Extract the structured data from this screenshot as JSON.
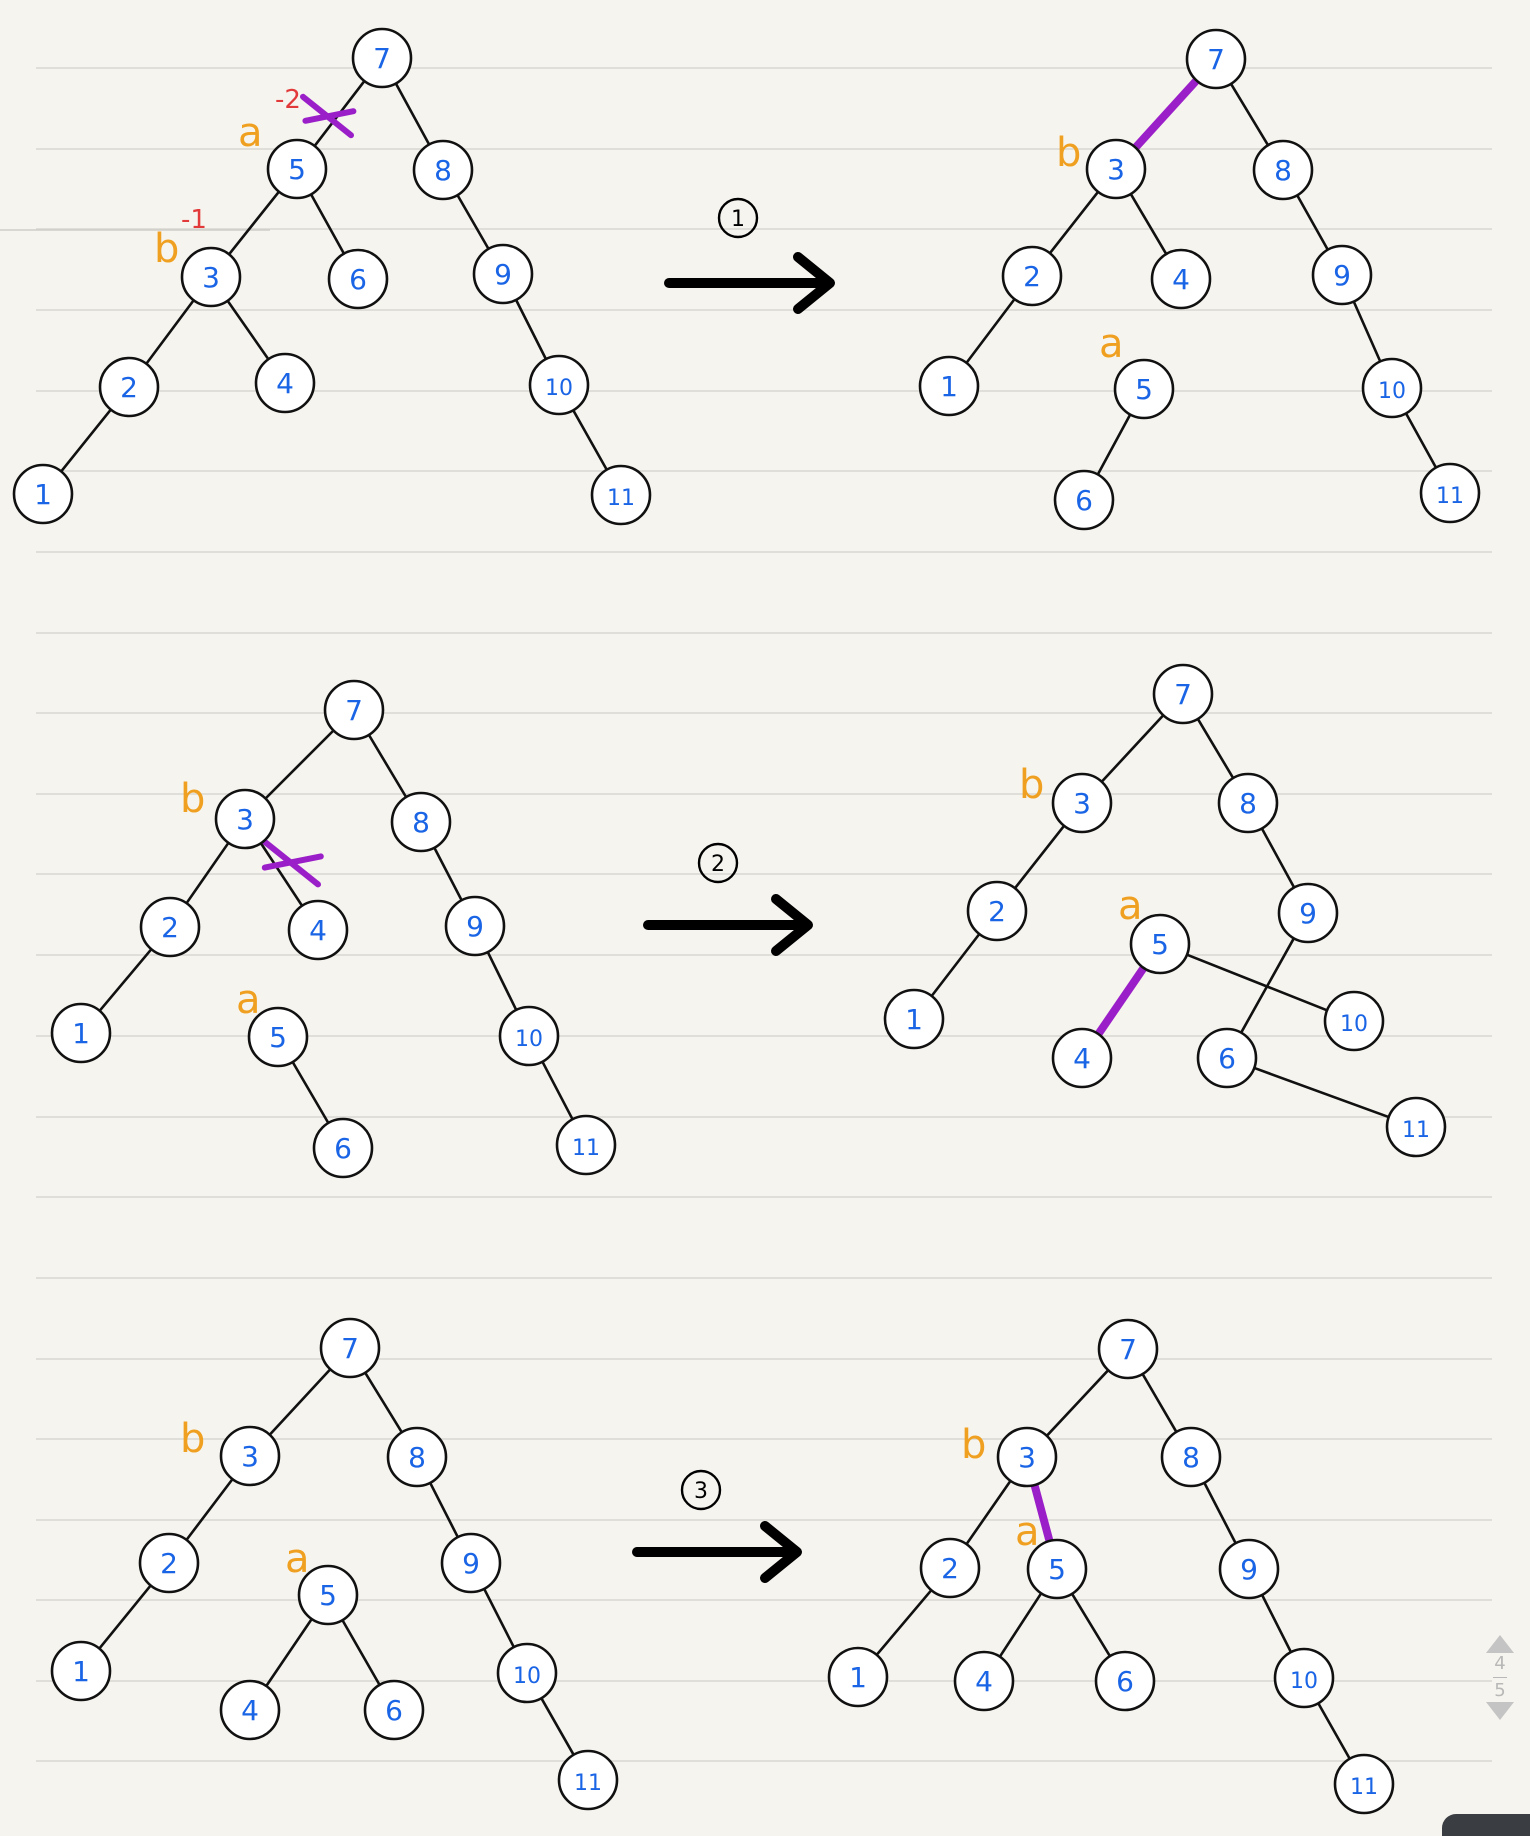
{
  "steps": [
    "1",
    "2",
    "3"
  ],
  "pager": {
    "current": "4",
    "total": "5"
  },
  "trees": [
    {
      "nodes": [
        "7",
        "5",
        "8",
        "3",
        "6",
        "9",
        "2",
        "4",
        "10",
        "1",
        "11"
      ],
      "labels": [
        "a",
        "b"
      ],
      "marks": [
        "-2",
        "-1"
      ]
    },
    {
      "nodes": [
        "7",
        "3",
        "8",
        "2",
        "4",
        "9",
        "1",
        "5",
        "10",
        "6",
        "11"
      ],
      "labels": [
        "b",
        "a"
      ]
    },
    {
      "nodes": [
        "7",
        "3",
        "8",
        "2",
        "4",
        "9",
        "1",
        "5",
        "10",
        "6",
        "11"
      ],
      "labels": [
        "b",
        "a"
      ]
    },
    {
      "nodes": [
        "7",
        "3",
        "8",
        "2",
        "5",
        "9",
        "1",
        "4",
        "6",
        "10",
        "11"
      ],
      "labels": [
        "b",
        "a"
      ]
    },
    {
      "nodes": [
        "7",
        "3",
        "8",
        "2",
        "5",
        "9",
        "1",
        "4",
        "6",
        "10",
        "11"
      ],
      "labels": [
        "b",
        "a"
      ]
    },
    {
      "nodes": [
        "7",
        "3",
        "8",
        "2",
        "5",
        "9",
        "1",
        "4",
        "6",
        "10",
        "11"
      ],
      "labels": [
        "b",
        "a"
      ]
    }
  ],
  "colors": {
    "node_text": "#1a64e6",
    "label": "#f0a020",
    "mark": "#e23a3a",
    "highlight": "#9a1fc9",
    "edge": "#111111"
  }
}
